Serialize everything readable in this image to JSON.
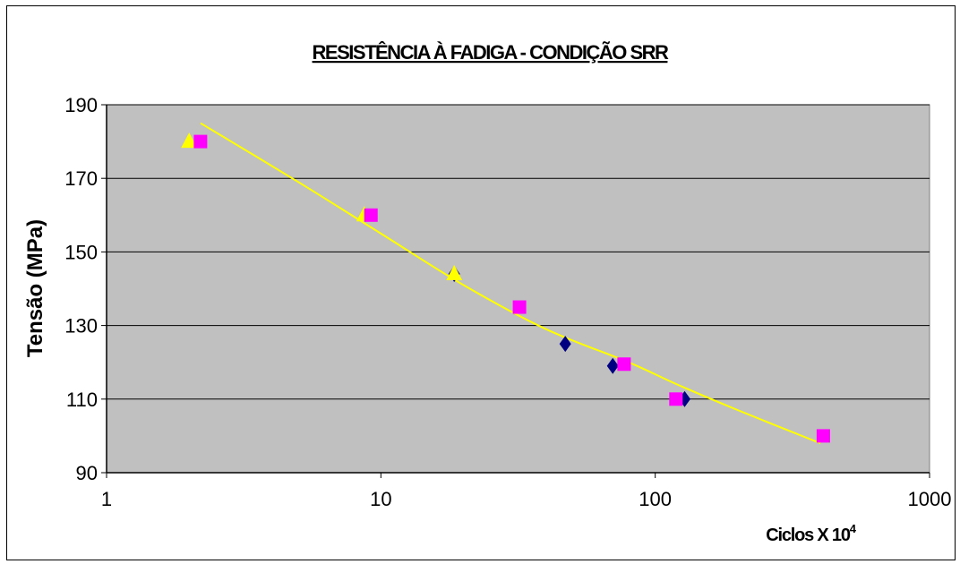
{
  "chart_data": {
    "type": "scatter",
    "title": "RESISTÊNCIA À FADIGA - CONDIÇÃO SRR",
    "xlabel": "Ciclos X 10",
    "xlabel_superscript": "4",
    "ylabel": "Tensão (MPa)",
    "x_scale": "log",
    "xlim": [
      1,
      1000
    ],
    "ylim": [
      90,
      190
    ],
    "x_ticks": [
      "1",
      "10",
      "100",
      "1000"
    ],
    "y_ticks": [
      "90",
      "110",
      "130",
      "150",
      "170",
      "190"
    ],
    "grid": "horizontal",
    "legend": "none",
    "plot_background": "#c0c0c0",
    "series": [
      {
        "marker": "diamond",
        "color": "#000080",
        "points": [
          [
            18.5,
            144
          ],
          [
            47,
            125
          ],
          [
            70,
            119
          ],
          [
            128,
            110
          ]
        ]
      },
      {
        "marker": "triangle",
        "color": "#ffff00",
        "points": [
          [
            2.0,
            180
          ],
          [
            8.7,
            160
          ],
          [
            18.5,
            144
          ]
        ]
      },
      {
        "marker": "square",
        "color": "#ff00ff",
        "points": [
          [
            2.2,
            180
          ],
          [
            9.2,
            160
          ],
          [
            32,
            135
          ],
          [
            77,
            119.5
          ],
          [
            119,
            110
          ],
          [
            410,
            100
          ]
        ]
      }
    ],
    "trendline": {
      "color": "#ffff00",
      "points": [
        [
          2.2,
          185
        ],
        [
          5,
          169
        ],
        [
          10,
          155
        ],
        [
          20,
          141
        ],
        [
          40,
          129
        ],
        [
          80,
          120
        ],
        [
          120,
          114
        ],
        [
          200,
          107
        ],
        [
          400,
          98
        ]
      ]
    }
  }
}
